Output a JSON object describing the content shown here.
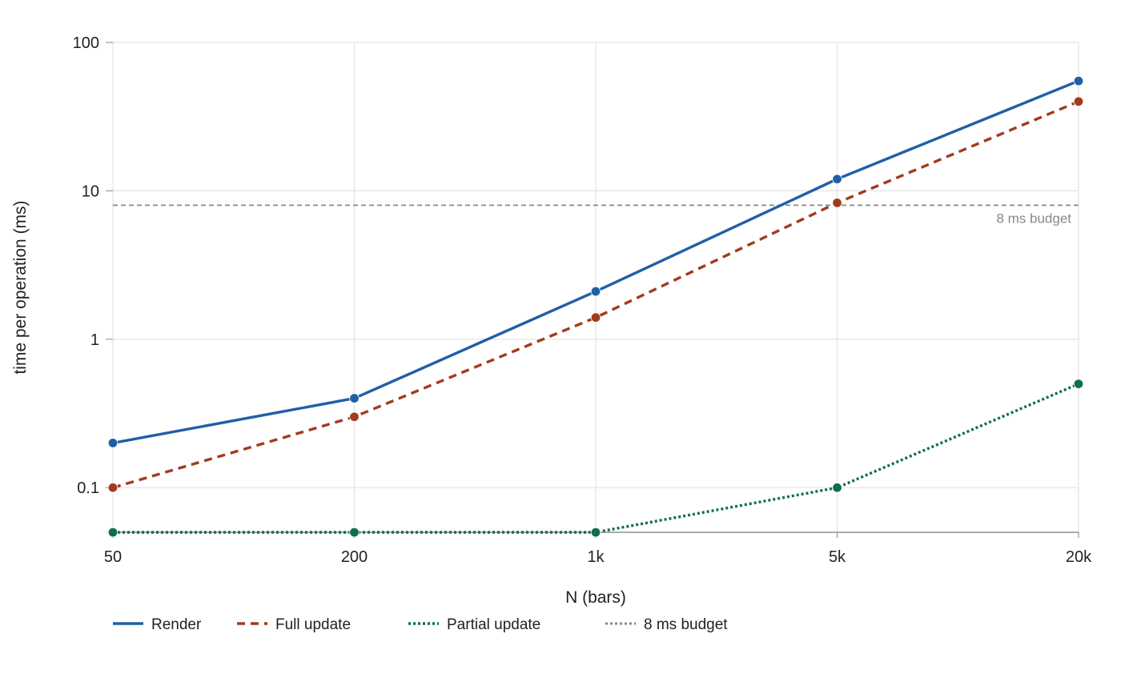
{
  "chart_data": {
    "type": "line",
    "title": "",
    "xlabel": "N (bars)",
    "ylabel": "time per operation (ms)",
    "y_scale": "log",
    "ylim": [
      0.05,
      100
    ],
    "grid": true,
    "legend_position": "bottom-left",
    "categories": [
      "50",
      "200",
      "1k",
      "5k",
      "20k"
    ],
    "x": [
      50,
      200,
      1000,
      5000,
      20000
    ],
    "y_ticks": [
      {
        "value": 0.1,
        "label": "0.1"
      },
      {
        "value": 1,
        "label": "1"
      },
      {
        "value": 10,
        "label": "10"
      },
      {
        "value": 100,
        "label": "100"
      }
    ],
    "series": [
      {
        "name": "Render",
        "values": [
          0.2,
          0.4,
          2.1,
          12,
          55
        ],
        "color": "#1f5fa8",
        "style": "solid"
      },
      {
        "name": "Full update",
        "values": [
          0.1,
          0.3,
          1.4,
          8.3,
          40
        ],
        "color": "#a23b1e",
        "style": "dashed"
      },
      {
        "name": "Partial update",
        "values": [
          0.05,
          0.05,
          0.05,
          0.1,
          0.5
        ],
        "color": "#0f6e52",
        "style": "dotted"
      }
    ],
    "reference_lines": [
      {
        "name": "8 ms budget",
        "value": 8,
        "color": "#888888",
        "style": "dashed",
        "label": "8 ms budget"
      }
    ]
  }
}
